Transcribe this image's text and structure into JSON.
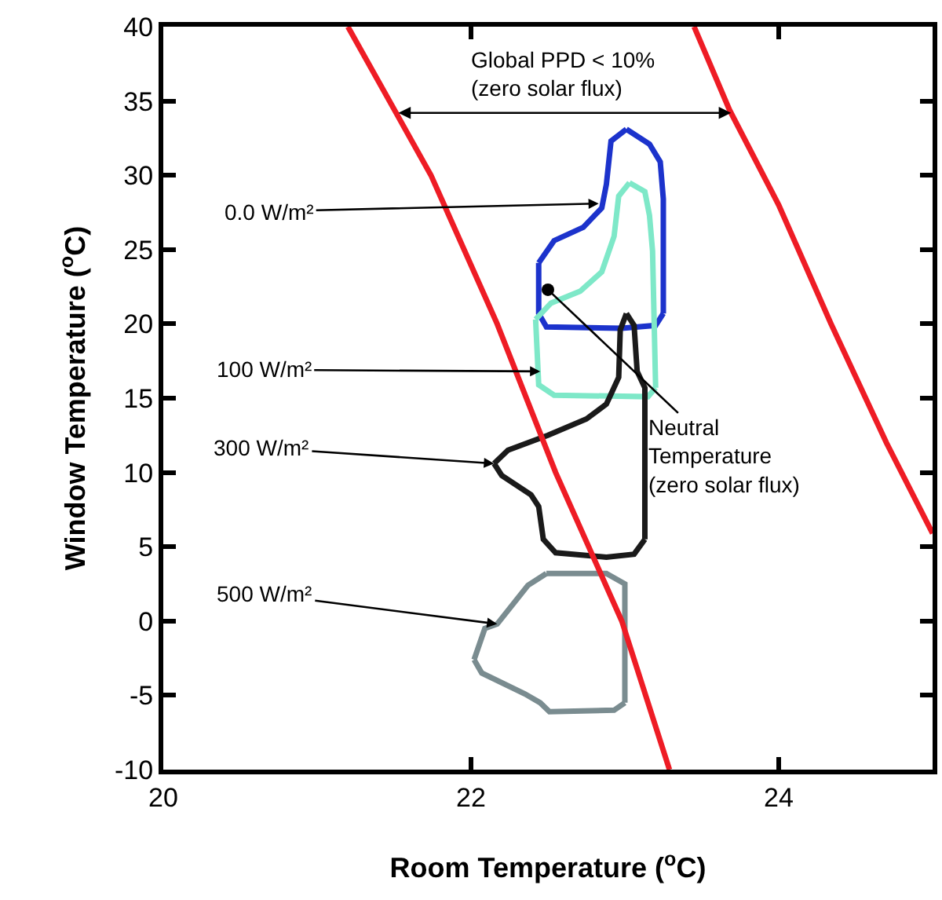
{
  "chart_data": {
    "type": "line",
    "xlabel": "Room Temperature ($^{o}$C)",
    "ylabel": "Window Temperature ($^{o}$C)",
    "xlim": [
      20,
      25
    ],
    "xticks": [
      20,
      22,
      24
    ],
    "ylim": [
      -10,
      40
    ],
    "yticks": [
      -10,
      -5,
      0,
      5,
      10,
      15,
      20,
      25,
      30,
      35,
      40
    ],
    "marker": "none",
    "line_style": "solid",
    "series": [
      {
        "color": "#1c33cc",
        "x": [
          23.01,
          23.16,
          23.23,
          23.25,
          23.25
        ],
        "values": [
          33.1,
          32.1,
          30.9,
          28.4,
          20.7
        ]
      },
      {
        "color": "#1c33cc",
        "x": [
          23.25,
          23.2,
          22.98,
          22.49,
          22.44,
          22.44
        ],
        "values": [
          20.7,
          19.9,
          19.7,
          19.8,
          20.7,
          24.1
        ]
      },
      {
        "color": "#1c33cc",
        "x": [
          22.44,
          22.54,
          22.73,
          22.85,
          22.88,
          22.91,
          23.01
        ],
        "values": [
          24.1,
          25.6,
          26.5,
          27.8,
          29.4,
          32.3,
          33.1
        ]
      },
      {
        "color": "#7ee8c8",
        "x": [
          23.03,
          23.13,
          23.16,
          23.18,
          23.2
        ],
        "values": [
          29.5,
          28.9,
          27.3,
          24.9,
          15.7
        ]
      },
      {
        "color": "#7ee8c8",
        "x": [
          23.2,
          23.15,
          22.54,
          22.44,
          22.42
        ],
        "values": [
          15.7,
          15.1,
          15.2,
          15.9,
          20.3
        ]
      },
      {
        "color": "#7ee8c8",
        "x": [
          22.42,
          22.52,
          22.71,
          22.85,
          22.93,
          22.96,
          23.03
        ],
        "values": [
          20.3,
          21.4,
          22.2,
          23.5,
          25.9,
          28.6,
          29.5
        ]
      },
      {
        "color": "#1a1a1a",
        "x": [
          23.01,
          23.06,
          23.08,
          23.13,
          23.13
        ],
        "values": [
          20.7,
          19.9,
          16.8,
          15.7,
          5.5
        ]
      },
      {
        "color": "#1a1a1a",
        "x": [
          23.13,
          23.06,
          22.88,
          22.55,
          22.47,
          22.44,
          22.39,
          22.2,
          22.15
        ],
        "values": [
          5.5,
          4.5,
          4.3,
          4.6,
          5.5,
          7.7,
          8.5,
          9.8,
          10.6
        ]
      },
      {
        "color": "#1a1a1a",
        "x": [
          22.15,
          22.24,
          22.5,
          22.75,
          22.88,
          22.96,
          22.97,
          23.01
        ],
        "values": [
          10.6,
          11.5,
          12.5,
          13.6,
          14.6,
          16.4,
          19.6,
          20.7
        ]
      },
      {
        "color": "#7a8c90",
        "x": [
          22.49,
          22.88,
          23.0,
          23.0
        ],
        "values": [
          3.2,
          3.2,
          2.5,
          -5.5
        ]
      },
      {
        "color": "#7a8c90",
        "x": [
          23.0,
          22.93,
          22.51,
          22.45,
          22.35,
          22.07,
          22.02
        ],
        "values": [
          -5.5,
          -6.0,
          -6.1,
          -5.5,
          -4.9,
          -3.5,
          -2.6
        ]
      },
      {
        "color": "#7a8c90",
        "x": [
          22.02,
          22.09,
          22.17,
          22.37,
          22.49
        ],
        "values": [
          -2.6,
          -0.5,
          -0.2,
          2.4,
          3.2
        ]
      },
      {
        "color": "#ee1c25",
        "x": [
          21.2,
          21.74,
          22.17,
          22.55,
          22.98,
          23.29
        ],
        "values": [
          40,
          30,
          20,
          10,
          0,
          -10
        ]
      },
      {
        "color": "#ee1c25",
        "x": [
          23.45,
          23.68,
          24.0,
          24.34,
          24.7,
          25.0
        ],
        "values": [
          40,
          34.4,
          28,
          20,
          12,
          5.9
        ]
      },
      {
        "type": "scatter",
        "marker": "circle",
        "color": "#000000",
        "x": [
          22.5
        ],
        "values": [
          22.3
        ]
      }
    ],
    "annotations": [
      "Global PPD < 10%\n(zero solar flux)",
      {
        "text": "0.0 W/m²",
        "x": 22.83,
        "y": 28.1
      },
      {
        "text": "100 W/m²",
        "x": 22.45,
        "y": 16.8
      },
      {
        "text": "300 W/m²",
        "x": 22.15,
        "y": 10.6
      },
      {
        "text": "500 W/m²",
        "x": 22.17,
        "y": -0.2
      },
      {
        "text": "Neutral\nTemperature\n(zero solar flux)",
        "x": 22.5,
        "y": 22.3
      }
    ]
  }
}
